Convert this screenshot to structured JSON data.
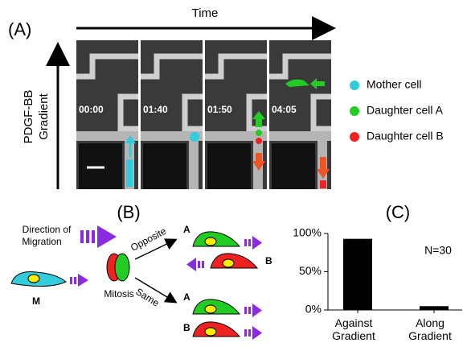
{
  "panel_a": {
    "label": "(A)",
    "time_label": "Time",
    "gradient_label": [
      "PDGF-BB",
      "Gradient"
    ],
    "timestamps": [
      "00:00",
      "01:40",
      "01:50",
      "04:05"
    ],
    "legend": [
      {
        "label": "Mother cell",
        "color": "#33ccdd"
      },
      {
        "label": "Daughter cell A",
        "color": "#22cc22"
      },
      {
        "label": "Daughter cell B",
        "color": "#ee2222"
      }
    ]
  },
  "panel_b": {
    "label": "(B)",
    "direction_label": [
      "Direction of",
      "Migration"
    ],
    "mother": "M",
    "mitosis": "Mitosis",
    "opposite": "Opposite",
    "same": "Same",
    "cell_labels": [
      "A",
      "B",
      "A",
      "B"
    ]
  },
  "chart_data": {
    "type": "bar",
    "title": "(C)",
    "annotation": "N=30",
    "categories": [
      "Against Gradient",
      "Along Gradient"
    ],
    "values": [
      93,
      5
    ],
    "color": "#000000",
    "ylim": [
      0,
      100
    ],
    "yticks": [
      {
        "value": 0,
        "label": "0%"
      },
      {
        "value": 50,
        "label": "50%"
      },
      {
        "value": 100,
        "label": "100%"
      }
    ]
  }
}
